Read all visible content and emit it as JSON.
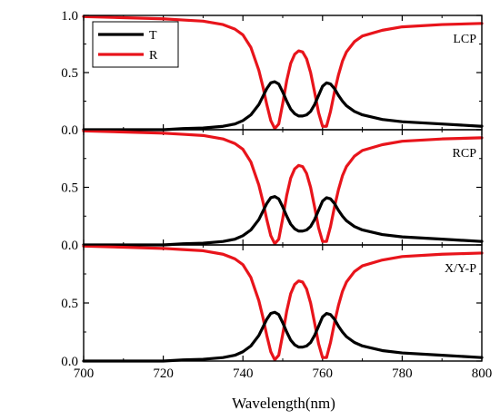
{
  "chart_data": {
    "type": "line",
    "layout": "3 stacked panels sharing x axis",
    "xlabel": "Wavelength(nm)",
    "xlim": [
      700,
      800
    ],
    "x_ticks": [
      700,
      720,
      740,
      760,
      780,
      800
    ],
    "x_tick_labels": [
      "700",
      "720",
      "740",
      "760",
      "780",
      "800"
    ],
    "colors": {
      "T": "#000000",
      "R": "#e8141b"
    },
    "legend": {
      "placement": "top-left of top panel",
      "entries": [
        "T",
        "R"
      ]
    },
    "panels": [
      {
        "label": "LCP",
        "ylim": [
          0,
          1
        ],
        "y_ticks": [
          0,
          0.5,
          1
        ],
        "y_tick_labels": [
          "0.0",
          "0.5",
          "1.0"
        ],
        "series": [
          {
            "name": "T",
            "x": [
              700,
              710,
              720,
              725,
              730,
              735,
              738,
              740,
              742,
              744,
              745,
              746,
              747,
              748,
              749,
              750,
              751,
              752,
              753,
              754,
              755,
              756,
              757,
              758,
              759,
              760,
              761,
              762,
              763,
              764,
              765,
              766,
              768,
              770,
              775,
              780,
              790,
              800
            ],
            "y": [
              0.0,
              0.0,
              0.0,
              0.01,
              0.015,
              0.03,
              0.05,
              0.08,
              0.13,
              0.22,
              0.29,
              0.36,
              0.41,
              0.42,
              0.4,
              0.33,
              0.25,
              0.18,
              0.14,
              0.12,
              0.12,
              0.13,
              0.16,
              0.22,
              0.3,
              0.38,
              0.41,
              0.4,
              0.36,
              0.3,
              0.25,
              0.21,
              0.16,
              0.13,
              0.09,
              0.07,
              0.05,
              0.03
            ]
          },
          {
            "name": "R",
            "x": [
              700,
              710,
              720,
              725,
              730,
              735,
              738,
              740,
              742,
              744,
              745,
              746,
              747,
              748,
              749,
              750,
              751,
              752,
              753,
              754,
              755,
              756,
              757,
              758,
              759,
              760,
              761,
              762,
              763,
              764,
              765,
              766,
              768,
              770,
              775,
              780,
              790,
              800
            ],
            "y": [
              0.99,
              0.98,
              0.97,
              0.96,
              0.95,
              0.92,
              0.88,
              0.83,
              0.72,
              0.52,
              0.38,
              0.22,
              0.08,
              0.01,
              0.05,
              0.23,
              0.43,
              0.58,
              0.66,
              0.69,
              0.68,
              0.62,
              0.5,
              0.33,
              0.15,
              0.03,
              0.03,
              0.16,
              0.33,
              0.48,
              0.6,
              0.68,
              0.77,
              0.82,
              0.87,
              0.9,
              0.92,
              0.93
            ]
          }
        ]
      },
      {
        "label": "RCP",
        "ylim": [
          0,
          1
        ],
        "y_ticks": [
          0,
          0.5,
          1
        ],
        "y_tick_labels": [
          "0.0",
          "0.5",
          ""
        ],
        "series": [
          {
            "name": "T",
            "x": [
              700,
              710,
              720,
              725,
              730,
              735,
              738,
              740,
              742,
              744,
              745,
              746,
              747,
              748,
              749,
              750,
              751,
              752,
              753,
              754,
              755,
              756,
              757,
              758,
              759,
              760,
              761,
              762,
              763,
              764,
              765,
              766,
              768,
              770,
              775,
              780,
              790,
              800
            ],
            "y": [
              0.0,
              0.0,
              0.0,
              0.01,
              0.015,
              0.03,
              0.05,
              0.08,
              0.13,
              0.22,
              0.29,
              0.36,
              0.41,
              0.42,
              0.4,
              0.33,
              0.25,
              0.18,
              0.14,
              0.12,
              0.12,
              0.13,
              0.16,
              0.22,
              0.3,
              0.38,
              0.41,
              0.4,
              0.36,
              0.3,
              0.25,
              0.21,
              0.16,
              0.13,
              0.09,
              0.07,
              0.05,
              0.03
            ]
          },
          {
            "name": "R",
            "x": [
              700,
              710,
              720,
              725,
              730,
              735,
              738,
              740,
              742,
              744,
              745,
              746,
              747,
              748,
              749,
              750,
              751,
              752,
              753,
              754,
              755,
              756,
              757,
              758,
              759,
              760,
              761,
              762,
              763,
              764,
              765,
              766,
              768,
              770,
              775,
              780,
              790,
              800
            ],
            "y": [
              0.99,
              0.98,
              0.97,
              0.96,
              0.95,
              0.92,
              0.88,
              0.83,
              0.72,
              0.52,
              0.38,
              0.22,
              0.08,
              0.01,
              0.05,
              0.23,
              0.43,
              0.58,
              0.66,
              0.69,
              0.68,
              0.62,
              0.5,
              0.33,
              0.15,
              0.03,
              0.03,
              0.16,
              0.33,
              0.48,
              0.6,
              0.68,
              0.77,
              0.82,
              0.87,
              0.9,
              0.92,
              0.93
            ]
          }
        ]
      },
      {
        "label": "X/Y-P",
        "ylim": [
          0,
          1
        ],
        "y_ticks": [
          0,
          0.5,
          1
        ],
        "y_tick_labels": [
          "0.0",
          "0.5",
          ""
        ],
        "series": [
          {
            "name": "T",
            "x": [
              700,
              710,
              720,
              725,
              730,
              735,
              738,
              740,
              742,
              744,
              745,
              746,
              747,
              748,
              749,
              750,
              751,
              752,
              753,
              754,
              755,
              756,
              757,
              758,
              759,
              760,
              761,
              762,
              763,
              764,
              765,
              766,
              768,
              770,
              775,
              780,
              790,
              800
            ],
            "y": [
              0.0,
              0.0,
              0.0,
              0.01,
              0.015,
              0.03,
              0.05,
              0.08,
              0.13,
              0.22,
              0.29,
              0.36,
              0.41,
              0.42,
              0.4,
              0.33,
              0.25,
              0.18,
              0.14,
              0.12,
              0.12,
              0.13,
              0.16,
              0.22,
              0.3,
              0.38,
              0.41,
              0.4,
              0.36,
              0.3,
              0.25,
              0.21,
              0.16,
              0.13,
              0.09,
              0.07,
              0.05,
              0.03
            ]
          },
          {
            "name": "R",
            "x": [
              700,
              710,
              720,
              725,
              730,
              735,
              738,
              740,
              742,
              744,
              745,
              746,
              747,
              748,
              749,
              750,
              751,
              752,
              753,
              754,
              755,
              756,
              757,
              758,
              759,
              760,
              761,
              762,
              763,
              764,
              765,
              766,
              768,
              770,
              775,
              780,
              790,
              800
            ],
            "y": [
              0.99,
              0.98,
              0.97,
              0.96,
              0.95,
              0.92,
              0.88,
              0.83,
              0.72,
              0.52,
              0.38,
              0.22,
              0.08,
              0.01,
              0.05,
              0.23,
              0.43,
              0.58,
              0.66,
              0.69,
              0.68,
              0.62,
              0.5,
              0.33,
              0.15,
              0.03,
              0.03,
              0.16,
              0.33,
              0.48,
              0.6,
              0.68,
              0.77,
              0.82,
              0.87,
              0.9,
              0.92,
              0.93
            ]
          }
        ]
      }
    ]
  }
}
